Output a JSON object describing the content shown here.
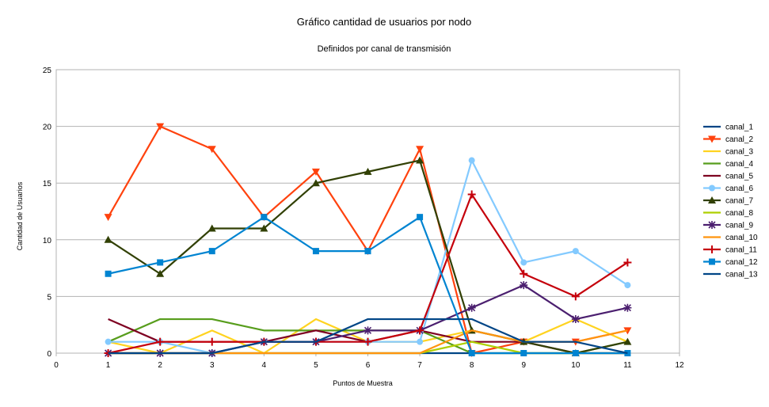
{
  "chart_data": {
    "type": "line",
    "title": "Gráfico cantidad de usuarios por nodo",
    "subtitle": "Definidos por canal de transmisión",
    "xlabel": "Puntos de Muestra",
    "ylabel": "Cantidad de Usuarios",
    "xlim": [
      0,
      12
    ],
    "ylim": [
      0,
      25
    ],
    "xticks": [
      0,
      1,
      2,
      3,
      4,
      5,
      6,
      7,
      8,
      9,
      10,
      11,
      12
    ],
    "yticks": [
      0,
      5,
      10,
      15,
      20,
      25
    ],
    "grid": "horizontal",
    "legend": "right",
    "x": [
      1,
      2,
      3,
      4,
      5,
      6,
      7,
      8,
      9,
      10,
      11
    ],
    "series": [
      {
        "name": "canal_1",
        "color": "#004586",
        "marker": "none",
        "values": [
          0,
          0,
          0,
          0,
          0,
          0,
          0,
          0,
          0,
          0,
          0
        ]
      },
      {
        "name": "canal_2",
        "color": "#ff420e",
        "marker": "triangle-down",
        "values": [
          12,
          20,
          18,
          12,
          16,
          9,
          18,
          0,
          1,
          1,
          2
        ]
      },
      {
        "name": "canal_3",
        "color": "#ffd320",
        "marker": "none",
        "values": [
          1,
          0,
          2,
          0,
          3,
          1,
          1,
          2,
          1,
          3,
          1
        ]
      },
      {
        "name": "canal_4",
        "color": "#579d1c",
        "marker": "none",
        "values": [
          1,
          3,
          3,
          2,
          2,
          2,
          2,
          0,
          0,
          0,
          1
        ]
      },
      {
        "name": "canal_5",
        "color": "#7e0021",
        "marker": "none",
        "values": [
          3,
          1,
          1,
          1,
          2,
          1,
          2,
          1,
          1,
          0,
          0
        ]
      },
      {
        "name": "canal_6",
        "color": "#83caff",
        "marker": "circle",
        "values": [
          1,
          1,
          0,
          1,
          1,
          1,
          1,
          17,
          8,
          9,
          6
        ]
      },
      {
        "name": "canal_7",
        "color": "#314004",
        "marker": "triangle-up",
        "values": [
          10,
          7,
          11,
          11,
          15,
          16,
          17,
          2,
          1,
          0,
          1
        ]
      },
      {
        "name": "canal_8",
        "color": "#aecf00",
        "marker": "none",
        "values": [
          0,
          0,
          0,
          0,
          0,
          0,
          0,
          1,
          0,
          0,
          0
        ]
      },
      {
        "name": "canal_9",
        "color": "#4b1f6f",
        "marker": "star",
        "values": [
          0,
          0,
          0,
          1,
          1,
          2,
          2,
          4,
          6,
          3,
          4
        ]
      },
      {
        "name": "canal_10",
        "color": "#ff950e",
        "marker": "none",
        "values": [
          0,
          0,
          0,
          0,
          0,
          0,
          0,
          2,
          1,
          1,
          2
        ]
      },
      {
        "name": "canal_11",
        "color": "#c5000b",
        "marker": "plus",
        "values": [
          0,
          1,
          1,
          1,
          1,
          1,
          2,
          14,
          7,
          5,
          8
        ]
      },
      {
        "name": "canal_12",
        "color": "#0084d1",
        "marker": "square",
        "values": [
          7,
          8,
          9,
          12,
          9,
          9,
          12,
          0,
          0,
          0,
          0
        ]
      },
      {
        "name": "canal_13",
        "color": "#004586",
        "marker": "none",
        "values": [
          0,
          0,
          0,
          1,
          1,
          3,
          3,
          3,
          1,
          1,
          0
        ]
      }
    ]
  }
}
